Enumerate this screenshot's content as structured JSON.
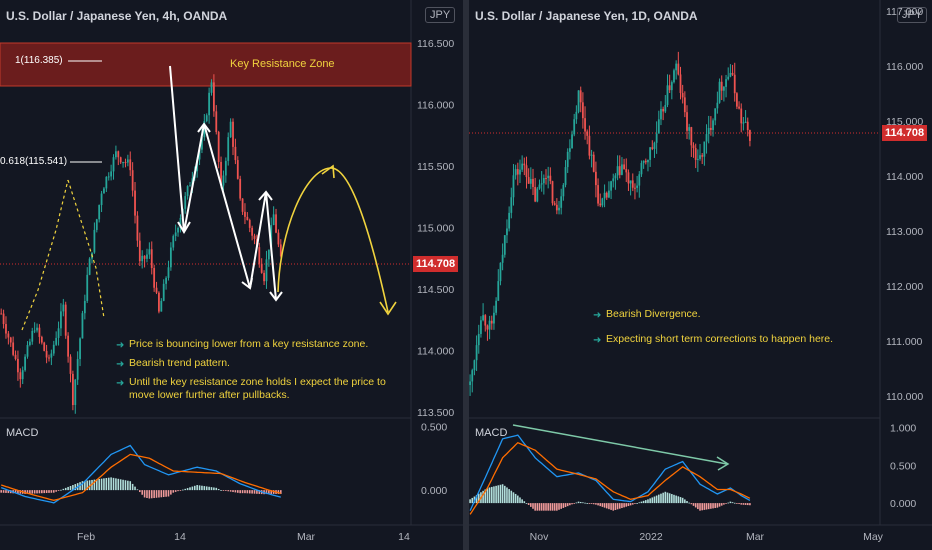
{
  "left": {
    "title": "U.S. Dollar / Japanese Yen, 4h, OANDA",
    "currency": "JPY",
    "last_price": "114.708",
    "zone_label": "Key Resistance Zone",
    "fib_1": "1(116.385)",
    "fib_0618": "0.618(115.541)",
    "notes": [
      "Price is bouncing lower from a key resistance zone.",
      "Bearish trend pattern.",
      "Until the key resistance zone holds I expect the price to move lower further after pullbacks."
    ],
    "macd_label": "MACD",
    "y_ticks": [
      "116.500",
      "116.000",
      "115.500",
      "115.000",
      "114.500",
      "114.000",
      "113.500"
    ],
    "macd_ticks": [
      "0.500",
      "0.000"
    ],
    "x_ticks": [
      "Feb",
      "14",
      "Mar",
      "14"
    ]
  },
  "right": {
    "title": "U.S. Dollar / Japanese Yen, 1D, OANDA",
    "currency": "JPY",
    "last_price": "114.708",
    "notes": [
      "Bearish Divergence.",
      "Expecting short term corrections to happen here."
    ],
    "macd_label": "MACD",
    "y_ticks": [
      "117.000",
      "116.000",
      "115.000",
      "114.000",
      "113.000",
      "112.000",
      "111.000",
      "110.000"
    ],
    "macd_ticks": [
      "1.000",
      "0.500",
      "0.000"
    ],
    "x_ticks": [
      "Nov",
      "2022",
      "Mar",
      "May"
    ]
  },
  "colors": {
    "background": "#131722",
    "up": "#26a69a",
    "down": "#ef5350",
    "macd_line": "#2196f3",
    "signal_line": "#ff6d00",
    "annotation": "#f0d33e",
    "price_line": "#d02d2d",
    "zone": "#6b1d1d"
  },
  "chart_data": [
    {
      "type": "candlestick",
      "title": "U.S. Dollar / Japanese Yen, 4h, OANDA",
      "ylabel": "JPY",
      "ylim": [
        113.45,
        116.85
      ],
      "last": 114.708,
      "resistance_zone": [
        116.1,
        116.5
      ],
      "fibonacci": [
        {
          "level": "1",
          "price": 116.385
        },
        {
          "level": "0.618",
          "price": 115.541
        }
      ],
      "close_path": [
        [
          0,
          114.3
        ],
        [
          8,
          113.8
        ],
        [
          14,
          114.2
        ],
        [
          20,
          113.9
        ],
        [
          26,
          114.35
        ],
        [
          30,
          113.6
        ],
        [
          36,
          114.6
        ],
        [
          42,
          115.3
        ],
        [
          48,
          115.6
        ],
        [
          54,
          115.5
        ],
        [
          58,
          114.7
        ],
        [
          62,
          114.8
        ],
        [
          66,
          114.3
        ],
        [
          72,
          114.9
        ],
        [
          78,
          115.3
        ],
        [
          84,
          115.7
        ],
        [
          88,
          116.2
        ],
        [
          92,
          115.3
        ],
        [
          96,
          115.85
        ],
        [
          100,
          115.2
        ],
        [
          106,
          114.9
        ],
        [
          110,
          114.6
        ],
        [
          114,
          115.1
        ],
        [
          118,
          114.6
        ]
      ],
      "macd": [
        [
          0,
          0.02
        ],
        [
          10,
          -0.05
        ],
        [
          22,
          -0.1
        ],
        [
          34,
          0.05
        ],
        [
          46,
          0.28
        ],
        [
          54,
          0.35
        ],
        [
          60,
          0.2
        ],
        [
          70,
          0.12
        ],
        [
          82,
          0.18
        ],
        [
          90,
          0.15
        ],
        [
          100,
          0.05
        ],
        [
          110,
          -0.02
        ],
        [
          118,
          -0.06
        ]
      ],
      "signal": [
        [
          0,
          0.04
        ],
        [
          10,
          -0.02
        ],
        [
          22,
          -0.08
        ],
        [
          34,
          -0.02
        ],
        [
          46,
          0.18
        ],
        [
          54,
          0.28
        ],
        [
          62,
          0.25
        ],
        [
          72,
          0.15
        ],
        [
          82,
          0.14
        ],
        [
          92,
          0.13
        ],
        [
          102,
          0.06
        ],
        [
          112,
          0.0
        ],
        [
          118,
          -0.03
        ]
      ]
    },
    {
      "type": "candlestick",
      "title": "U.S. Dollar / Japanese Yen, 1D, OANDA",
      "ylabel": "JPY",
      "ylim": [
        109.6,
        117.2
      ],
      "last": 114.708,
      "close_path": [
        [
          0,
          110.2
        ],
        [
          5,
          111.5
        ],
        [
          10,
          111.2
        ],
        [
          15,
          112.6
        ],
        [
          20,
          114.0
        ],
        [
          25,
          114.2
        ],
        [
          30,
          113.6
        ],
        [
          35,
          114.1
        ],
        [
          40,
          113.3
        ],
        [
          45,
          114.4
        ],
        [
          50,
          115.5
        ],
        [
          55,
          114.5
        ],
        [
          60,
          113.4
        ],
        [
          65,
          113.8
        ],
        [
          70,
          114.2
        ],
        [
          75,
          113.7
        ],
        [
          80,
          114.2
        ],
        [
          85,
          114.6
        ],
        [
          90,
          115.4
        ],
        [
          95,
          116.0
        ],
        [
          100,
          114.9
        ],
        [
          105,
          114.2
        ],
        [
          110,
          114.8
        ],
        [
          115,
          115.6
        ],
        [
          120,
          115.9
        ],
        [
          125,
          115.0
        ],
        [
          130,
          114.7
        ]
      ],
      "macd": [
        [
          0,
          -0.1
        ],
        [
          8,
          0.4
        ],
        [
          15,
          0.85
        ],
        [
          22,
          0.9
        ],
        [
          30,
          0.6
        ],
        [
          40,
          0.35
        ],
        [
          50,
          0.4
        ],
        [
          58,
          0.3
        ],
        [
          66,
          0.05
        ],
        [
          74,
          0.02
        ],
        [
          82,
          0.15
        ],
        [
          90,
          0.45
        ],
        [
          98,
          0.55
        ],
        [
          106,
          0.25
        ],
        [
          114,
          0.12
        ],
        [
          120,
          0.2
        ],
        [
          125,
          0.1
        ],
        [
          130,
          0.02
        ]
      ],
      "signal": [
        [
          0,
          -0.15
        ],
        [
          8,
          0.2
        ],
        [
          15,
          0.6
        ],
        [
          22,
          0.8
        ],
        [
          30,
          0.7
        ],
        [
          40,
          0.45
        ],
        [
          50,
          0.38
        ],
        [
          58,
          0.32
        ],
        [
          66,
          0.15
        ],
        [
          74,
          0.05
        ],
        [
          82,
          0.1
        ],
        [
          90,
          0.3
        ],
        [
          98,
          0.48
        ],
        [
          106,
          0.35
        ],
        [
          114,
          0.18
        ],
        [
          120,
          0.18
        ],
        [
          125,
          0.12
        ],
        [
          130,
          0.05
        ]
      ]
    }
  ]
}
